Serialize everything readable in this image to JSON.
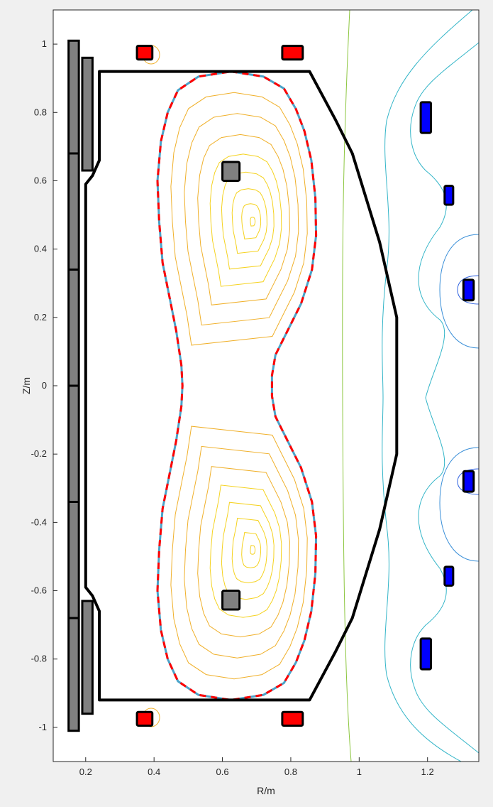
{
  "chart_data": {
    "type": "contour",
    "title": "",
    "xlabel": "R/m",
    "ylabel": "Z/m",
    "xlim": [
      0.105,
      1.35
    ],
    "ylim": [
      -1.1,
      1.1
    ],
    "xticks": [
      0.2,
      0.4,
      0.6,
      0.8,
      1,
      1.2
    ],
    "xtick_labels": [
      "0.2",
      "0.4",
      "0.6",
      "0.8",
      "1",
      "1.2"
    ],
    "yticks": [
      -1,
      -0.8,
      -0.6,
      -0.4,
      -0.2,
      0,
      0.2,
      0.4,
      0.6,
      0.8,
      1
    ],
    "ytick_labels": [
      "-1",
      "-0.8",
      "-0.6",
      "-0.4",
      "-0.2",
      "0",
      "0.2",
      "0.4",
      "0.6",
      "0.8",
      "1"
    ],
    "grid": false,
    "legend": "none",
    "colors": {
      "vessel": "#000000",
      "separatrix_a": "#ff0000",
      "separatrix_b": "#4aa3c9",
      "inner_contours": "#f0b02a",
      "outer_contours": "#33b5c8",
      "pf_coils_red": "#ff0000",
      "pf_coils_blue": "#0000ff",
      "passive_grey": "#808080"
    },
    "vessel_wall": [
      [
        0.24,
        0.92
      ],
      [
        0.855,
        0.92
      ],
      [
        0.93,
        0.78
      ],
      [
        0.98,
        0.68
      ],
      [
        1.06,
        0.42
      ],
      [
        1.11,
        0.2
      ],
      [
        1.11,
        -0.2
      ],
      [
        1.06,
        -0.42
      ],
      [
        0.98,
        -0.68
      ],
      [
        0.93,
        -0.78
      ],
      [
        0.855,
        -0.92
      ],
      [
        0.24,
        -0.92
      ],
      [
        0.24,
        -0.66
      ],
      [
        0.22,
        -0.615
      ],
      [
        0.2,
        -0.59
      ],
      [
        0.2,
        -0.53
      ],
      [
        0.2,
        0.53
      ],
      [
        0.2,
        0.59
      ],
      [
        0.22,
        0.615
      ],
      [
        0.24,
        0.66
      ]
    ],
    "separatrix": [
      [
        0.625,
        0.92
      ],
      [
        0.72,
        0.905
      ],
      [
        0.78,
        0.87
      ],
      [
        0.815,
        0.81
      ],
      [
        0.84,
        0.745
      ],
      [
        0.86,
        0.66
      ],
      [
        0.872,
        0.55
      ],
      [
        0.874,
        0.44
      ],
      [
        0.862,
        0.34
      ],
      [
        0.83,
        0.24
      ],
      [
        0.785,
        0.15
      ],
      [
        0.755,
        0.09
      ],
      [
        0.745,
        0.03
      ],
      [
        0.745,
        0
      ],
      [
        0.745,
        -0.03
      ],
      [
        0.755,
        -0.09
      ],
      [
        0.785,
        -0.15
      ],
      [
        0.83,
        -0.24
      ],
      [
        0.862,
        -0.34
      ],
      [
        0.874,
        -0.44
      ],
      [
        0.872,
        -0.55
      ],
      [
        0.86,
        -0.66
      ],
      [
        0.84,
        -0.745
      ],
      [
        0.815,
        -0.81
      ],
      [
        0.78,
        -0.87
      ],
      [
        0.72,
        -0.905
      ],
      [
        0.625,
        -0.92
      ],
      [
        0.53,
        -0.905
      ],
      [
        0.47,
        -0.865
      ],
      [
        0.44,
        -0.8
      ],
      [
        0.42,
        -0.715
      ],
      [
        0.41,
        -0.6
      ],
      [
        0.415,
        -0.48
      ],
      [
        0.425,
        -0.36
      ],
      [
        0.445,
        -0.26
      ],
      [
        0.465,
        -0.16
      ],
      [
        0.48,
        -0.06
      ],
      [
        0.483,
        0
      ],
      [
        0.48,
        0.06
      ],
      [
        0.465,
        0.16
      ],
      [
        0.445,
        0.26
      ],
      [
        0.425,
        0.36
      ],
      [
        0.415,
        0.48
      ],
      [
        0.41,
        0.6
      ],
      [
        0.42,
        0.715
      ],
      [
        0.44,
        0.8
      ],
      [
        0.47,
        0.865
      ],
      [
        0.53,
        0.905
      ]
    ],
    "flux_centers": [
      {
        "r": 0.69,
        "z": 0.48
      },
      {
        "r": 0.69,
        "z": -0.48
      }
    ],
    "inner_contour_levels": [
      0.03,
      0.12,
      0.22,
      0.33,
      0.45,
      0.58,
      0.72,
      0.86
    ],
    "central_solenoid": [
      {
        "r0": 0.15,
        "r1": 0.18,
        "z0": -1.01,
        "z1": 1.01
      },
      {
        "r0": 0.19,
        "r1": 0.22,
        "z0": 0.63,
        "z1": 0.96
      },
      {
        "r0": 0.19,
        "r1": 0.22,
        "z0": -0.96,
        "z1": -0.63
      }
    ],
    "cs_dividers": [
      0.68,
      0.34,
      0,
      -0.34,
      -0.68
    ],
    "coils": [
      {
        "r0": 0.35,
        "r1": 0.395,
        "z0": 0.955,
        "z1": 0.995,
        "color": "red"
      },
      {
        "r0": 0.775,
        "r1": 0.835,
        "z0": 0.955,
        "z1": 0.995,
        "color": "red"
      },
      {
        "r0": 0.35,
        "r1": 0.395,
        "z0": -0.995,
        "z1": -0.955,
        "color": "red"
      },
      {
        "r0": 0.775,
        "r1": 0.835,
        "z0": -0.995,
        "z1": -0.955,
        "color": "red"
      },
      {
        "r0": 0.6,
        "r1": 0.65,
        "z0": 0.6,
        "z1": 0.655,
        "color": "grey"
      },
      {
        "r0": 0.6,
        "r1": 0.65,
        "z0": -0.655,
        "z1": -0.6,
        "color": "grey"
      },
      {
        "r0": 1.18,
        "r1": 1.21,
        "z0": 0.74,
        "z1": 0.83,
        "color": "blue"
      },
      {
        "r0": 1.25,
        "r1": 1.275,
        "z0": 0.53,
        "z1": 0.585,
        "color": "blue"
      },
      {
        "r0": 1.305,
        "r1": 1.335,
        "z0": 0.25,
        "z1": 0.31,
        "color": "blue"
      },
      {
        "r0": 1.305,
        "r1": 1.335,
        "z0": -0.31,
        "z1": -0.25,
        "color": "blue"
      },
      {
        "r0": 1.25,
        "r1": 1.275,
        "z0": -0.585,
        "z1": -0.53,
        "color": "blue"
      },
      {
        "r0": 1.18,
        "r1": 1.21,
        "z0": -0.83,
        "z1": -0.74,
        "color": "blue"
      }
    ]
  }
}
